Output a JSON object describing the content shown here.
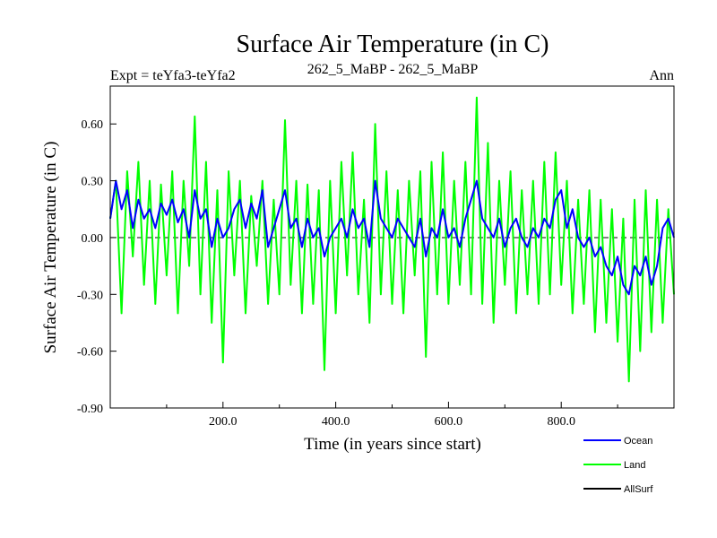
{
  "chart_data": {
    "type": "line",
    "title": "Surface Air Temperature (in C)",
    "subtitle_left": "Expt = teYfa3-teYfa2",
    "subtitle_center": "262_5_MaBP - 262_5_MaBP",
    "subtitle_right": "Ann",
    "xlabel": "Time (in years since start)",
    "ylabel": "Surface Air Temperature (in C)",
    "xlim": [
      0,
      1000
    ],
    "ylim": [
      -0.9,
      0.8
    ],
    "xticks": [
      200,
      400,
      600,
      800
    ],
    "xtick_labels": [
      "200.0",
      "400.0",
      "600.0",
      "800.0"
    ],
    "yticks": [
      0.6,
      0.3,
      0.0,
      -0.3,
      -0.6,
      -0.9
    ],
    "ytick_labels": [
      "0.60",
      "0.30",
      "0.00",
      "-0.30",
      "-0.60",
      "-0.90"
    ],
    "reference_line": 0.0,
    "legend_position": "bottom-right",
    "series": [
      {
        "name": "Land",
        "color": "#00ff00",
        "x": [
          0,
          10,
          20,
          30,
          40,
          50,
          60,
          70,
          80,
          90,
          100,
          110,
          120,
          130,
          140,
          150,
          160,
          170,
          180,
          190,
          200,
          210,
          220,
          230,
          240,
          250,
          260,
          270,
          280,
          290,
          300,
          310,
          320,
          330,
          340,
          350,
          360,
          370,
          380,
          390,
          400,
          410,
          420,
          430,
          440,
          450,
          460,
          470,
          480,
          490,
          500,
          510,
          520,
          530,
          540,
          550,
          560,
          570,
          580,
          590,
          600,
          610,
          620,
          630,
          640,
          650,
          660,
          670,
          680,
          690,
          700,
          710,
          720,
          730,
          740,
          750,
          760,
          770,
          780,
          790,
          800,
          810,
          820,
          830,
          840,
          850,
          860,
          870,
          880,
          890,
          900,
          910,
          920,
          930,
          940,
          950,
          960,
          970,
          980,
          990,
          1000
        ],
        "values": [
          0.1,
          0.3,
          -0.4,
          0.35,
          -0.1,
          0.4,
          -0.25,
          0.3,
          -0.35,
          0.28,
          -0.2,
          0.35,
          -0.4,
          0.3,
          -0.15,
          0.64,
          -0.3,
          0.4,
          -0.45,
          0.25,
          -0.66,
          0.35,
          -0.2,
          0.3,
          -0.4,
          0.22,
          -0.15,
          0.3,
          -0.35,
          0.2,
          -0.3,
          0.62,
          -0.25,
          0.3,
          -0.4,
          0.28,
          -0.35,
          0.25,
          -0.7,
          0.3,
          -0.4,
          0.4,
          -0.2,
          0.45,
          -0.3,
          0.2,
          -0.45,
          0.6,
          -0.3,
          0.35,
          -0.35,
          0.25,
          -0.4,
          0.3,
          -0.2,
          0.35,
          -0.63,
          0.4,
          -0.3,
          0.45,
          -0.35,
          0.3,
          -0.25,
          0.4,
          -0.3,
          0.74,
          -0.35,
          0.5,
          -0.45,
          0.3,
          -0.25,
          0.35,
          -0.4,
          0.25,
          -0.3,
          0.3,
          -0.35,
          0.4,
          -0.3,
          0.45,
          -0.25,
          0.3,
          -0.4,
          0.2,
          -0.35,
          0.25,
          -0.5,
          0.2,
          -0.45,
          0.15,
          -0.55,
          0.1,
          -0.76,
          0.2,
          -0.6,
          0.25,
          -0.5,
          0.2,
          -0.45,
          0.15,
          -0.3
        ]
      },
      {
        "name": "Ocean",
        "color": "#0000ff",
        "x": [
          0,
          10,
          20,
          30,
          40,
          50,
          60,
          70,
          80,
          90,
          100,
          110,
          120,
          130,
          140,
          150,
          160,
          170,
          180,
          190,
          200,
          210,
          220,
          230,
          240,
          250,
          260,
          270,
          280,
          290,
          300,
          310,
          320,
          330,
          340,
          350,
          360,
          370,
          380,
          390,
          400,
          410,
          420,
          430,
          440,
          450,
          460,
          470,
          480,
          490,
          500,
          510,
          520,
          530,
          540,
          550,
          560,
          570,
          580,
          590,
          600,
          610,
          620,
          630,
          640,
          650,
          660,
          670,
          680,
          690,
          700,
          710,
          720,
          730,
          740,
          750,
          760,
          770,
          780,
          790,
          800,
          810,
          820,
          830,
          840,
          850,
          860,
          870,
          880,
          890,
          900,
          910,
          920,
          930,
          940,
          950,
          960,
          970,
          980,
          990,
          1000
        ],
        "values": [
          0.1,
          0.3,
          0.15,
          0.25,
          0.05,
          0.2,
          0.1,
          0.15,
          0.05,
          0.18,
          0.12,
          0.2,
          0.08,
          0.15,
          0.0,
          0.25,
          0.1,
          0.15,
          -0.05,
          0.1,
          0.0,
          0.05,
          0.15,
          0.2,
          0.05,
          0.18,
          0.1,
          0.25,
          -0.05,
          0.05,
          0.15,
          0.25,
          0.05,
          0.1,
          -0.05,
          0.1,
          0.0,
          0.05,
          -0.1,
          0.0,
          0.05,
          0.1,
          0.0,
          0.15,
          0.05,
          0.1,
          -0.05,
          0.3,
          0.1,
          0.05,
          0.0,
          0.1,
          0.05,
          0.0,
          -0.05,
          0.1,
          -0.1,
          0.05,
          0.0,
          0.15,
          0.0,
          0.05,
          -0.05,
          0.1,
          0.2,
          0.3,
          0.1,
          0.05,
          0.0,
          0.1,
          -0.05,
          0.05,
          0.1,
          0.0,
          -0.05,
          0.05,
          0.0,
          0.1,
          0.05,
          0.2,
          0.25,
          0.05,
          0.15,
          0.0,
          -0.05,
          0.0,
          -0.1,
          -0.05,
          -0.15,
          -0.2,
          -0.1,
          -0.25,
          -0.3,
          -0.15,
          -0.2,
          -0.1,
          -0.25,
          -0.15,
          0.05,
          0.1,
          0.0
        ]
      },
      {
        "name": "AllSurf",
        "color": "#000000",
        "x": [],
        "values": []
      }
    ]
  }
}
